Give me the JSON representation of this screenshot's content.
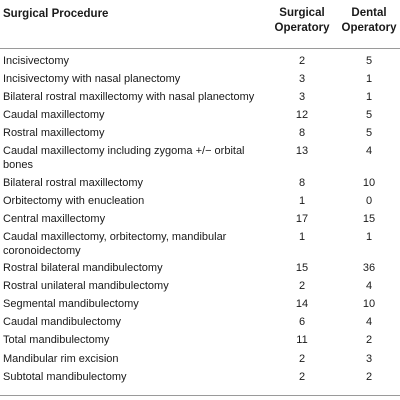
{
  "table": {
    "headers": {
      "procedure": "Surgical Procedure",
      "surgical_line1": "Surgical",
      "surgical_line2": "Operatory",
      "dental_line1": "Dental",
      "dental_line2": "Operatory"
    },
    "rows": [
      {
        "procedure": "Incisivectomy",
        "surgical": "2",
        "dental": "5"
      },
      {
        "procedure": "Incisivectomy with nasal planectomy",
        "surgical": "3",
        "dental": "1"
      },
      {
        "procedure": "Bilateral rostral maxillectomy with nasal planectomy",
        "surgical": "3",
        "dental": "1"
      },
      {
        "procedure": "Caudal maxillectomy",
        "surgical": "12",
        "dental": "5"
      },
      {
        "procedure": "Rostral maxillectomy",
        "surgical": "8",
        "dental": "5"
      },
      {
        "procedure": "Caudal maxillectomy including zygoma +/− orbital bones",
        "surgical": "13",
        "dental": "4"
      },
      {
        "procedure": "Bilateral rostral maxillectomy",
        "surgical": "8",
        "dental": "10"
      },
      {
        "procedure": "Orbitectomy with enucleation",
        "surgical": "1",
        "dental": "0"
      },
      {
        "procedure": "Central maxillectomy",
        "surgical": "17",
        "dental": "15"
      },
      {
        "procedure": "Caudal maxillectomy, orbitectomy, mandibular coronoidectomy",
        "surgical": "1",
        "dental": "1"
      },
      {
        "procedure": "Rostral bilateral mandibulectomy",
        "surgical": "15",
        "dental": "36"
      },
      {
        "procedure": "Rostral unilateral mandibulectomy",
        "surgical": "2",
        "dental": "4"
      },
      {
        "procedure": "Segmental mandibulectomy",
        "surgical": "14",
        "dental": "10"
      },
      {
        "procedure": "Caudal mandibulectomy",
        "surgical": "6",
        "dental": "4"
      },
      {
        "procedure": "Total mandibulectomy",
        "surgical": "11",
        "dental": "2"
      },
      {
        "procedure": "Mandibular rim excision",
        "surgical": "2",
        "dental": "3"
      },
      {
        "procedure": "Subtotal mandibulectomy",
        "surgical": "2",
        "dental": "2"
      }
    ]
  }
}
